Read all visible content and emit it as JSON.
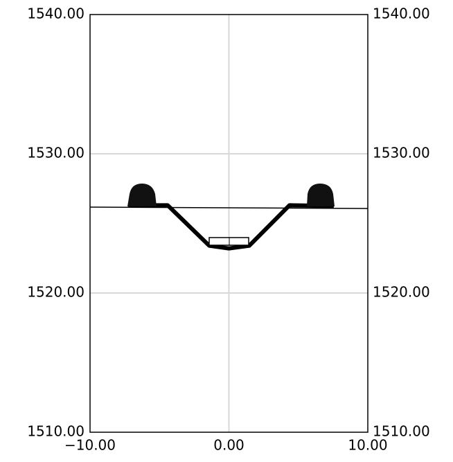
{
  "chart_data": {
    "type": "line",
    "xlim": [
      -10,
      10
    ],
    "xticks": [
      {
        "value": -10,
        "label": "−10.00"
      },
      {
        "value": 0,
        "label": "0.00"
      },
      {
        "value": 10,
        "label": "10.00"
      }
    ],
    "ylim": [
      1510,
      1540
    ],
    "yticks": [
      {
        "value": 1510,
        "label": "1510.00"
      },
      {
        "value": 1520,
        "label": "1520.00"
      },
      {
        "value": 1530,
        "label": "1530.00"
      },
      {
        "value": 1540,
        "label": "1540.00"
      }
    ],
    "grid": true,
    "series": [
      {
        "color": "#000000",
        "x": [
          -10,
          10
        ],
        "values": [
          1526.17,
          1526.07
        ]
      },
      {
        "color": "#000000",
        "x": [
          -7.26,
          -4.41,
          -1.42,
          0,
          1.47,
          4.36,
          7.55
        ],
        "values": [
          1526.3,
          1526.3,
          1523.4,
          1523.2,
          1523.4,
          1526.3,
          1526.25
        ]
      }
    ]
  }
}
